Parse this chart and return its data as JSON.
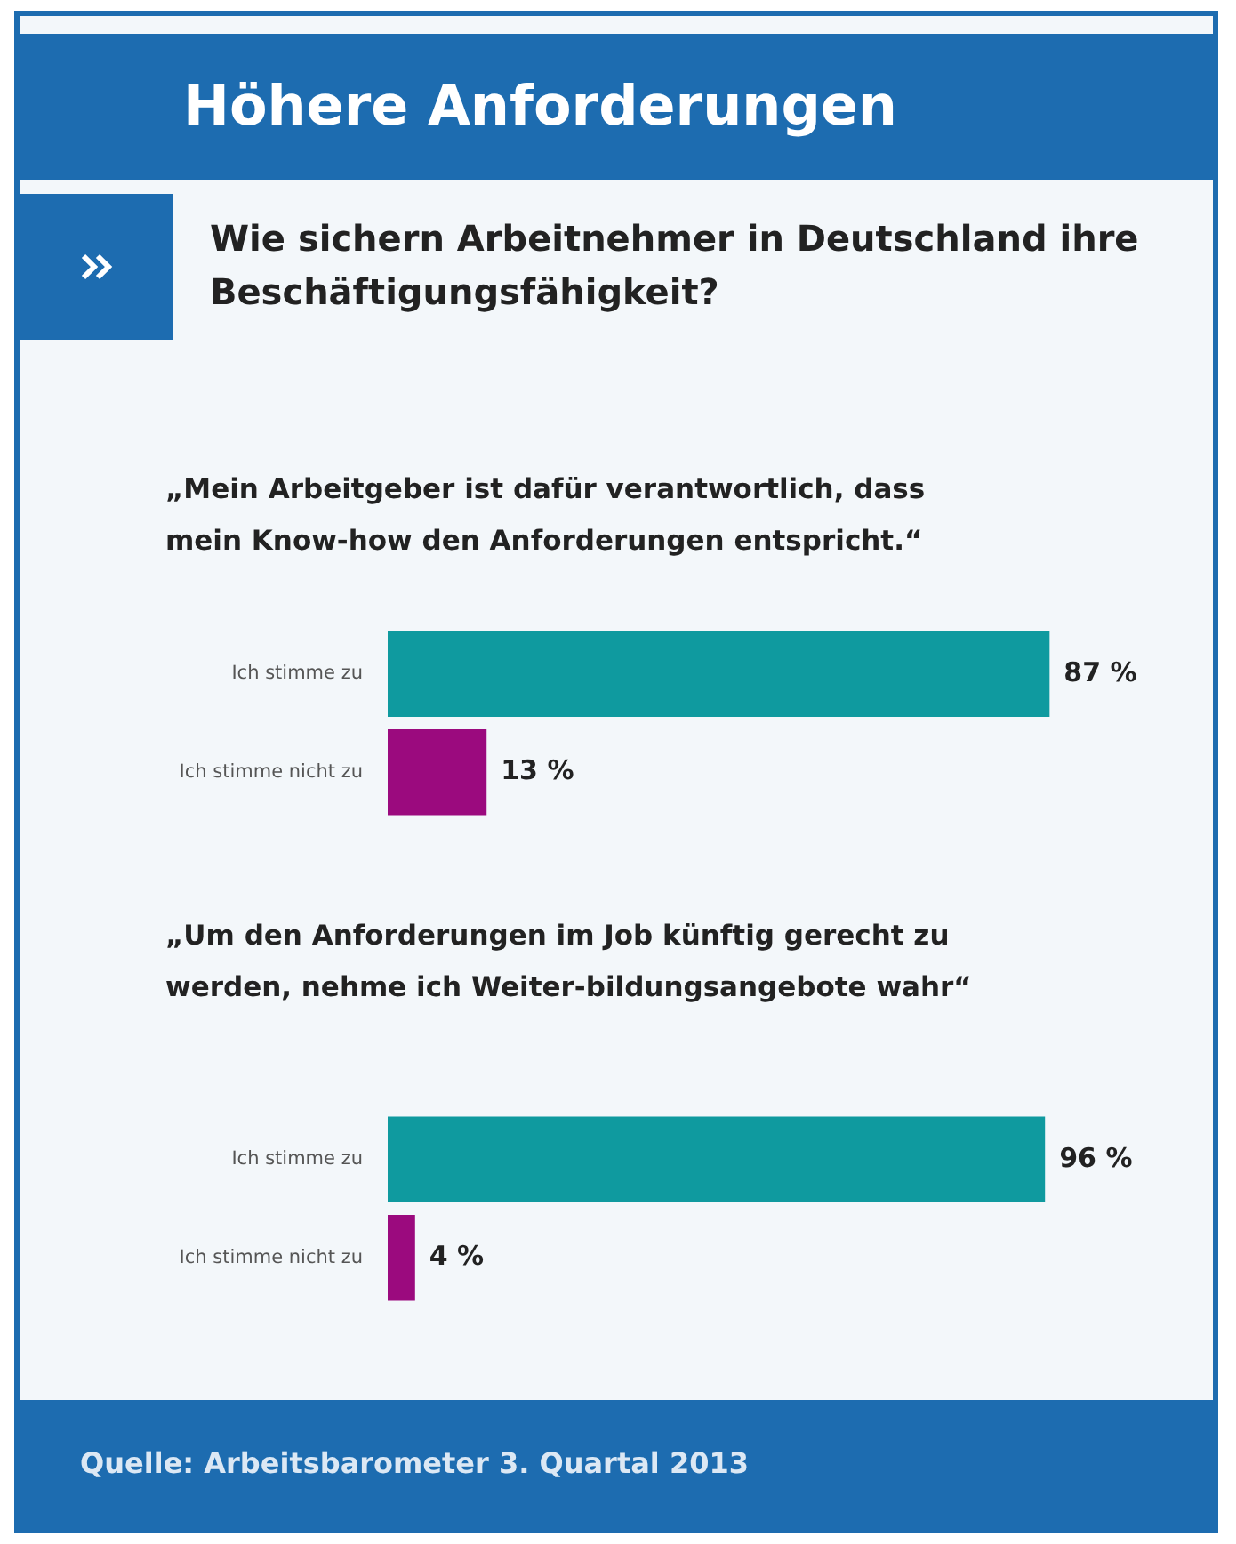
{
  "chart_data": [
    {
      "type": "other",
      "title": "Höhere Anforderungen",
      "subtitle": "Wie sichern Arbeitnehmer in Deutschland ihre Beschäftigungsfähigkeit?"
    },
    {
      "type": "bar",
      "orientation": "horizontal",
      "title": "„Mein Arbeitgeber ist dafür verantwortlich, dass mein Know-how den Anforderungen entspricht.“",
      "categories": [
        "Ich stimme zu",
        "Ich stimme nicht zu"
      ],
      "values": [
        87,
        13
      ],
      "colors": [
        "#0f9a9f",
        "#9b0a7e"
      ],
      "value_labels": [
        "87 %",
        "13 %"
      ],
      "tick_labels": "y"
    },
    {
      "type": "bar",
      "orientation": "horizontal",
      "title": "„Um den Anforderungen im Job künftig gerecht zu werden, nehme ich Weiter-bildungsangebote wahr“",
      "categories": [
        "Ich stimme zu",
        "Ich stimme nicht zu"
      ],
      "values": [
        96,
        4
      ],
      "colors": [
        "#0f9a9f",
        "#9b0a7e"
      ],
      "value_labels": [
        "96 %",
        "4 %"
      ],
      "tick_labels": "y",
      "annotations": [
        "Quelle: Arbeitsbarometer 3. Quartal 2013"
      ]
    }
  ]
}
